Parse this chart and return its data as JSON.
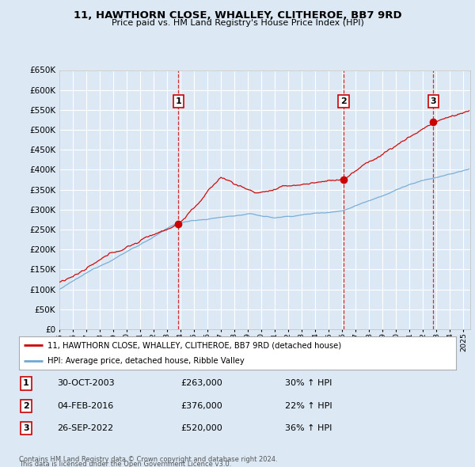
{
  "title": "11, HAWTHORN CLOSE, WHALLEY, CLITHEROE, BB7 9RD",
  "subtitle": "Price paid vs. HM Land Registry's House Price Index (HPI)",
  "legend_line1": "11, HAWTHORN CLOSE, WHALLEY, CLITHEROE, BB7 9RD (detached house)",
  "legend_line2": "HPI: Average price, detached house, Ribble Valley",
  "footer1": "Contains HM Land Registry data © Crown copyright and database right 2024.",
  "footer2": "This data is licensed under the Open Government Licence v3.0.",
  "sales": [
    {
      "label": "1",
      "date": "30-OCT-2003",
      "price": "£263,000",
      "pct": "30% ↑ HPI",
      "year": 2003.83,
      "y_val": 263000
    },
    {
      "label": "2",
      "date": "04-FEB-2016",
      "price": "£376,000",
      "pct": "22% ↑ HPI",
      "year": 2016.09,
      "y_val": 376000
    },
    {
      "label": "3",
      "date": "26-SEP-2022",
      "price": "£520,000",
      "pct": "36% ↑ HPI",
      "year": 2022.75,
      "y_val": 520000
    }
  ],
  "ylim": [
    0,
    650000
  ],
  "yticks": [
    0,
    50000,
    100000,
    150000,
    200000,
    250000,
    300000,
    350000,
    400000,
    450000,
    500000,
    550000,
    600000,
    650000
  ],
  "xmin": 1995,
  "xmax": 2025.5,
  "background_color": "#dce9f5",
  "plot_bg_color": "#dce9f5",
  "grid_color": "#ffffff",
  "red_line_color": "#cc0000",
  "blue_line_color": "#6fa8d4",
  "sale_marker_color": "#cc0000",
  "dashed_vline_color": "#cc0000"
}
